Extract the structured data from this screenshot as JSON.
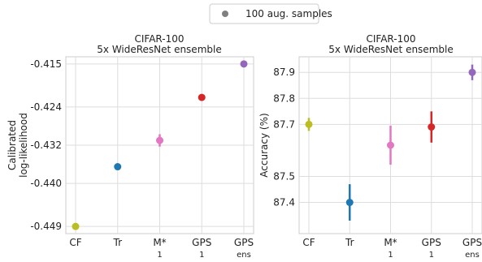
{
  "legend": {
    "label": "100 aug. samples",
    "marker_color": "#7f7f7f"
  },
  "chart_data": [
    {
      "type": "scatter",
      "title": "CIFAR-100",
      "subtitle": "5x WideResNet ensemble",
      "ylabel_line1": "Calibrated",
      "ylabel_line2": "log-likelihood",
      "xlabel": "",
      "categories": [
        {
          "line1": "CF",
          "line2": ""
        },
        {
          "line1": "Tr",
          "line2": ""
        },
        {
          "line1": "M*",
          "line2": "1"
        },
        {
          "line1": "GPS",
          "line2": "1"
        },
        {
          "line1": "GPS",
          "line2": "ens"
        }
      ],
      "yticks": [
        -0.449,
        -0.44,
        -0.432,
        -0.424,
        -0.415
      ],
      "ytick_labels": [
        "-0.449",
        "-0.440",
        "-0.432",
        "-0.424",
        "-0.415"
      ],
      "ylim": [
        -0.4505,
        -0.4135
      ],
      "grid": true,
      "points": [
        {
          "value": -0.449,
          "err": 0.0,
          "color": "#bcbd22"
        },
        {
          "value": -0.4365,
          "err": 0.0,
          "color": "#1f77b4"
        },
        {
          "value": -0.431,
          "err": 0.0013,
          "color": "#e377c2"
        },
        {
          "value": -0.422,
          "err": 0.0,
          "color": "#d62728"
        },
        {
          "value": -0.415,
          "err": 0.0,
          "color": "#9467bd"
        }
      ]
    },
    {
      "type": "scatter",
      "title": "CIFAR-100",
      "subtitle": "5x WideResNet ensemble",
      "ylabel_line1": "Accuracy (%)",
      "ylabel_line2": "",
      "xlabel": "",
      "categories": [
        {
          "line1": "CF",
          "line2": ""
        },
        {
          "line1": "Tr",
          "line2": ""
        },
        {
          "line1": "M*",
          "line2": "1"
        },
        {
          "line1": "GPS",
          "line2": "1"
        },
        {
          "line1": "GPS",
          "line2": "ens"
        }
      ],
      "yticks": [
        87.4,
        87.5,
        87.7,
        87.8,
        87.9
      ],
      "ytick_labels": [
        "87.4",
        "87.5",
        "87.7",
        "87.8",
        "87.9"
      ],
      "ylim": [
        87.28,
        87.96
      ],
      "grid": true,
      "points": [
        {
          "value": 87.7,
          "err": 0.025,
          "color": "#bcbd22"
        },
        {
          "value": 87.4,
          "err": 0.07,
          "color": "#1f77b4"
        },
        {
          "value": 87.62,
          "err": 0.075,
          "color": "#e377c2"
        },
        {
          "value": 87.69,
          "err": 0.06,
          "color": "#d62728"
        },
        {
          "value": 87.9,
          "err": 0.03,
          "color": "#9467bd"
        }
      ]
    }
  ]
}
